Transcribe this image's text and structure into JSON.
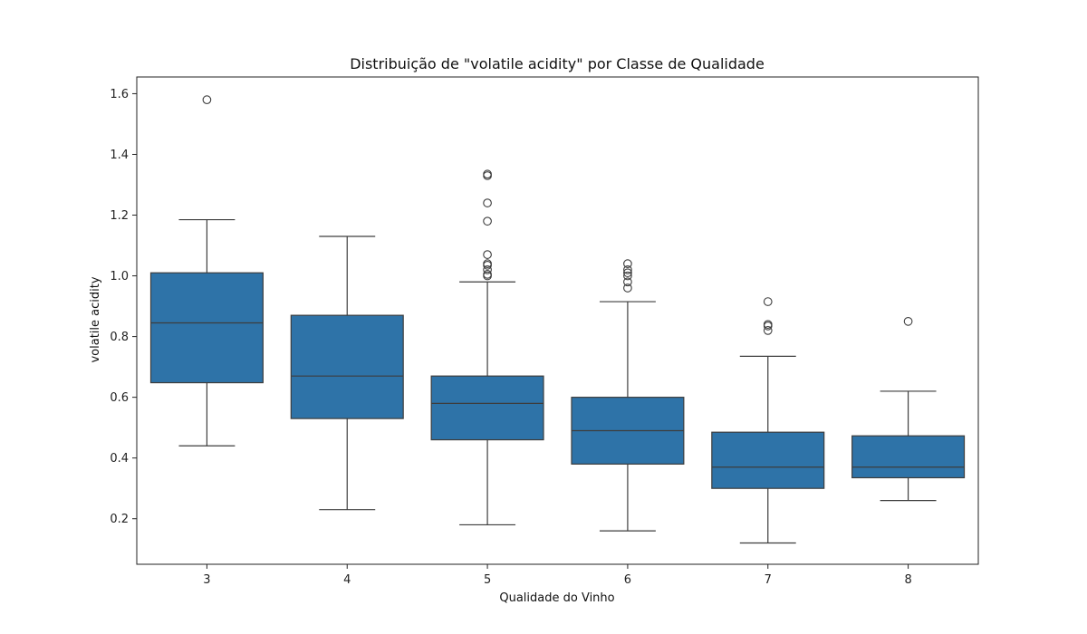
{
  "chart_data": {
    "type": "boxplot",
    "title": "Distribuição de \"volatile acidity\" por Classe de Qualidade",
    "xlabel": "Qualidade do Vinho",
    "ylabel": "volatile acidity",
    "ylim": [
      0.05,
      1.655
    ],
    "yticks": [
      "0.2",
      "0.4",
      "0.6",
      "0.8",
      "1.0",
      "1.2",
      "1.4",
      "1.6"
    ],
    "grid": false,
    "box_color": "#2e73a8",
    "line_color": "#3d3d3d",
    "categories": [
      "3",
      "4",
      "5",
      "6",
      "7",
      "8"
    ],
    "boxes": [
      {
        "category": "3",
        "whisker_low": 0.44,
        "q1": 0.648,
        "median": 0.845,
        "q3": 1.01,
        "whisker_high": 1.185,
        "outliers": [
          1.58
        ]
      },
      {
        "category": "4",
        "whisker_low": 0.23,
        "q1": 0.53,
        "median": 0.67,
        "q3": 0.87,
        "whisker_high": 1.13,
        "outliers": []
      },
      {
        "category": "5",
        "whisker_low": 0.18,
        "q1": 0.46,
        "median": 0.58,
        "q3": 0.67,
        "whisker_high": 0.98,
        "outliers": [
          1.0,
          1.005,
          1.02,
          1.035,
          1.04,
          1.07,
          1.18,
          1.24,
          1.33,
          1.335
        ]
      },
      {
        "category": "6",
        "whisker_low": 0.16,
        "q1": 0.38,
        "median": 0.49,
        "q3": 0.6,
        "whisker_high": 0.915,
        "outliers": [
          0.96,
          0.98,
          1.0,
          1.01,
          1.02,
          1.04
        ]
      },
      {
        "category": "7",
        "whisker_low": 0.12,
        "q1": 0.3,
        "median": 0.37,
        "q3": 0.485,
        "whisker_high": 0.735,
        "outliers": [
          0.82,
          0.835,
          0.84,
          0.915
        ]
      },
      {
        "category": "8",
        "whisker_low": 0.26,
        "q1": 0.335,
        "median": 0.37,
        "q3": 0.473,
        "whisker_high": 0.62,
        "outliers": [
          0.85
        ]
      }
    ]
  }
}
